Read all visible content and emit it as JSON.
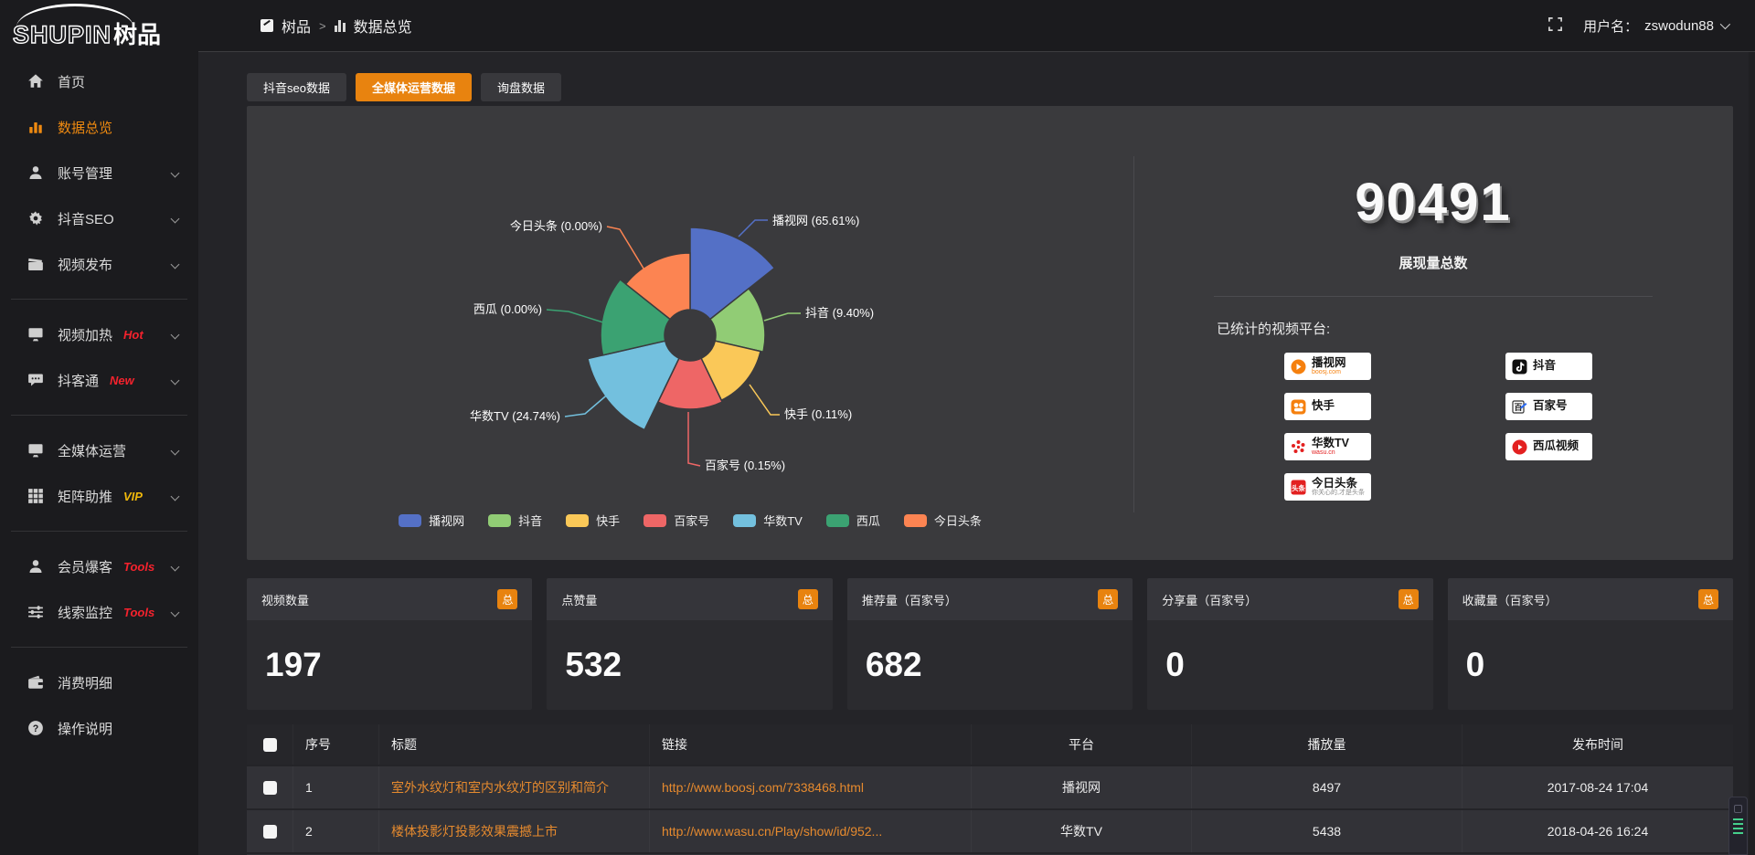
{
  "app": {
    "accent_color": "#e8830f",
    "danger_color": "#f5222d",
    "vip_color": "#f0b90b"
  },
  "topbar": {
    "breadcrumb": {
      "root": "树品",
      "separator": ">",
      "current": "数据总览"
    },
    "username_label": "用户名：",
    "username": "zswodun88"
  },
  "sidebar": {
    "logo_en": "SHUPIN",
    "logo_cn": "树品",
    "groups": [
      [
        {
          "label": "首页",
          "slug": "home",
          "icon": "home",
          "chevron": false,
          "active": false
        },
        {
          "label": "数据总览",
          "slug": "data-overview",
          "icon": "chart",
          "chevron": false,
          "active": true
        },
        {
          "label": "账号管理",
          "slug": "account-management",
          "icon": "user",
          "chevron": true,
          "active": false
        },
        {
          "label": "抖音SEO",
          "slug": "douyin-seo",
          "icon": "gear",
          "chevron": true,
          "active": false
        },
        {
          "label": "视频发布",
          "slug": "video-publish",
          "icon": "clapper",
          "chevron": true,
          "active": false
        }
      ],
      [
        {
          "label": "视频加热",
          "slug": "video-heating",
          "icon": "monitor",
          "badge": "Hot",
          "badge_color": "#f5222d",
          "chevron": true,
          "active": false
        },
        {
          "label": "抖客通",
          "slug": "douketong",
          "icon": "chat",
          "badge": "New",
          "badge_color": "#f5222d",
          "chevron": true,
          "active": false
        }
      ],
      [
        {
          "label": "全媒体运营",
          "slug": "omni-media-operation",
          "icon": "monitor",
          "chevron": true,
          "active": false
        },
        {
          "label": "矩阵助推",
          "slug": "matrix-boost",
          "icon": "grid",
          "badge": "VIP",
          "badge_color": "#f0b90b",
          "chevron": true,
          "active": false
        }
      ],
      [
        {
          "label": "会员爆客",
          "slug": "member-leads",
          "icon": "user",
          "badge": "Tools",
          "badge_color": "#f5222d",
          "chevron": true,
          "active": false
        },
        {
          "label": "线索监控",
          "slug": "lead-monitoring",
          "icon": "sliders",
          "badge": "Tools",
          "badge_color": "#f5222d",
          "chevron": true,
          "active": false
        }
      ],
      [
        {
          "label": "消费明细",
          "slug": "consumption-details",
          "icon": "wallet",
          "chevron": false,
          "active": false
        },
        {
          "label": "操作说明",
          "slug": "operation-guide",
          "icon": "question",
          "chevron": false,
          "active": false
        }
      ]
    ]
  },
  "tabs": [
    {
      "label": "抖音seo数据",
      "slug": "douyin-seo-data",
      "active": false
    },
    {
      "label": "全媒体运营数据",
      "slug": "omni-media-data",
      "active": true
    },
    {
      "label": "询盘数据",
      "slug": "inquiry-data",
      "active": false
    }
  ],
  "chart_data": {
    "type": "pie",
    "subtype": "nightingale-rose",
    "legend_position": "bottom",
    "label_format": "{name} ({pct}%)",
    "series": [
      {
        "name": "播视网",
        "slug": "boosj",
        "pct": "65.61",
        "color": "#5470c6"
      },
      {
        "name": "抖音",
        "slug": "douyin",
        "pct": "9.40",
        "color": "#91cc75"
      },
      {
        "name": "快手",
        "slug": "kuaishou",
        "pct": "0.11",
        "color": "#fac858"
      },
      {
        "name": "百家号",
        "slug": "baijiahao",
        "pct": "0.15",
        "color": "#ee6666"
      },
      {
        "name": "华数TV",
        "slug": "wasu-tv",
        "pct": "24.74",
        "color": "#73c0de"
      },
      {
        "name": "西瓜",
        "slug": "xigua",
        "pct": "0.00",
        "color": "#3ba272"
      },
      {
        "name": "今日头条",
        "slug": "toutiao",
        "pct": "0.00",
        "color": "#fc8452"
      }
    ]
  },
  "summary_panel": {
    "value": "90491",
    "label": "展现量总数",
    "platforms_title": "已统计的视频平台:",
    "platform_columns": [
      [
        {
          "name": "播视网",
          "sub": "boosj.com",
          "icon": "boosj"
        },
        {
          "name": "快手",
          "icon": "kuaishou"
        },
        {
          "name": "华数TV",
          "sub": "wasu.cn",
          "icon": "wasu"
        },
        {
          "name": "今日头条",
          "sub": "你关心的,才是头条",
          "icon": "toutiao"
        }
      ],
      [
        {
          "name": "抖音",
          "icon": "douyin"
        },
        {
          "name": "百家号",
          "icon": "baijiahao"
        },
        {
          "name": "西瓜视频",
          "icon": "xigua"
        }
      ]
    ]
  },
  "stat_cards": [
    {
      "title": "视频数量",
      "badge": "总",
      "value": "197"
    },
    {
      "title": "点赞量",
      "badge": "总",
      "value": "532"
    },
    {
      "title": "推荐量（百家号）",
      "badge": "总",
      "value": "682"
    },
    {
      "title": "分享量（百家号）",
      "badge": "总",
      "value": "0"
    },
    {
      "title": "收藏量（百家号）",
      "badge": "总",
      "value": "0"
    }
  ],
  "table": {
    "columns": [
      "序号",
      "标题",
      "链接",
      "平台",
      "播放量",
      "发布时间"
    ],
    "rows": [
      {
        "no": "1",
        "title": "室外水纹灯和室内水纹灯的区别和简介",
        "link": "http://www.boosj.com/7338468.html",
        "platform": "播视网",
        "plays": "8497",
        "time": "2017-08-24 17:04"
      },
      {
        "no": "2",
        "title": "楼体投影灯投影效果震撼上市",
        "link": "http://www.wasu.cn/Play/show/id/952...",
        "platform": "华数TV",
        "plays": "5438",
        "time": "2018-04-26 16:24"
      }
    ]
  }
}
